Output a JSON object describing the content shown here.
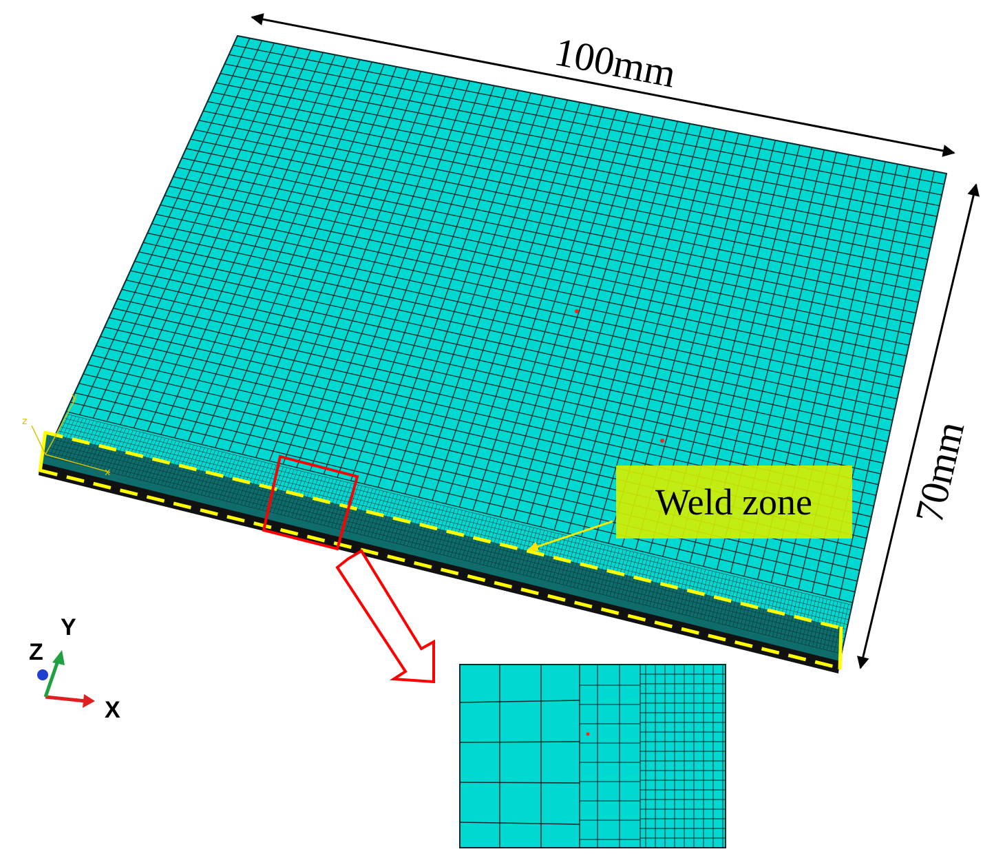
{
  "dimensions": {
    "length_label": "100mm",
    "width_label": "70mm"
  },
  "annotation": {
    "weld_zone_label": "Weld zone"
  },
  "triad": {
    "x_label": "X",
    "y_label": "Y",
    "z_label": "Z"
  },
  "corner_triad": {
    "z": "z",
    "y": "y",
    "x": "x"
  },
  "colors": {
    "mesh_fill": "#00d8d2",
    "mesh_lines": "#0a2a2a",
    "weld_highlight": "#ffff00",
    "callout": "#ff0000",
    "label_box": "#d6f000"
  }
}
